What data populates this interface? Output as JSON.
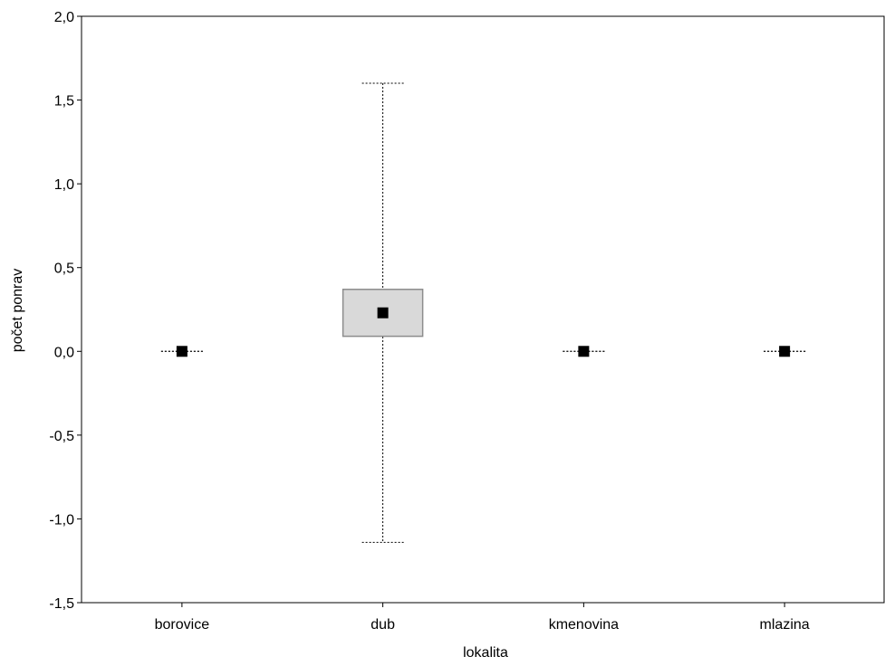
{
  "chart_data": {
    "type": "boxplot",
    "title": "",
    "xlabel": "lokalita",
    "ylabel": "počet ponrav",
    "ylim": [
      -1.5,
      2.0
    ],
    "yticks": [
      -1.5,
      -1.0,
      -0.5,
      0.0,
      0.5,
      1.0,
      1.5,
      2.0
    ],
    "ytick_labels": [
      "-1,5",
      "-1,0",
      "-0,5",
      "0,0",
      "0,5",
      "1,0",
      "1,5",
      "2,0"
    ],
    "grid": false,
    "categories": [
      "borovice",
      "dub",
      "kmenovina",
      "mlazina"
    ],
    "series": [
      {
        "category": "borovice",
        "mean": 0.0,
        "box_low": 0.0,
        "box_high": 0.0,
        "whisker_low": 0.0,
        "whisker_high": 0.0
      },
      {
        "category": "dub",
        "mean": 0.23,
        "box_low": 0.09,
        "box_high": 0.37,
        "whisker_low": -1.14,
        "whisker_high": 1.6
      },
      {
        "category": "kmenovina",
        "mean": 0.0,
        "box_low": 0.0,
        "box_high": 0.0,
        "whisker_low": 0.0,
        "whisker_high": 0.0
      },
      {
        "category": "mlazina",
        "mean": 0.0,
        "box_low": 0.0,
        "box_high": 0.0,
        "whisker_low": 0.0,
        "whisker_high": 0.0
      }
    ],
    "colors": {
      "box_fill": "#d9d9d9",
      "box_stroke": "#8c8c8c",
      "marker": "#000000",
      "whisker": "#000000"
    }
  }
}
